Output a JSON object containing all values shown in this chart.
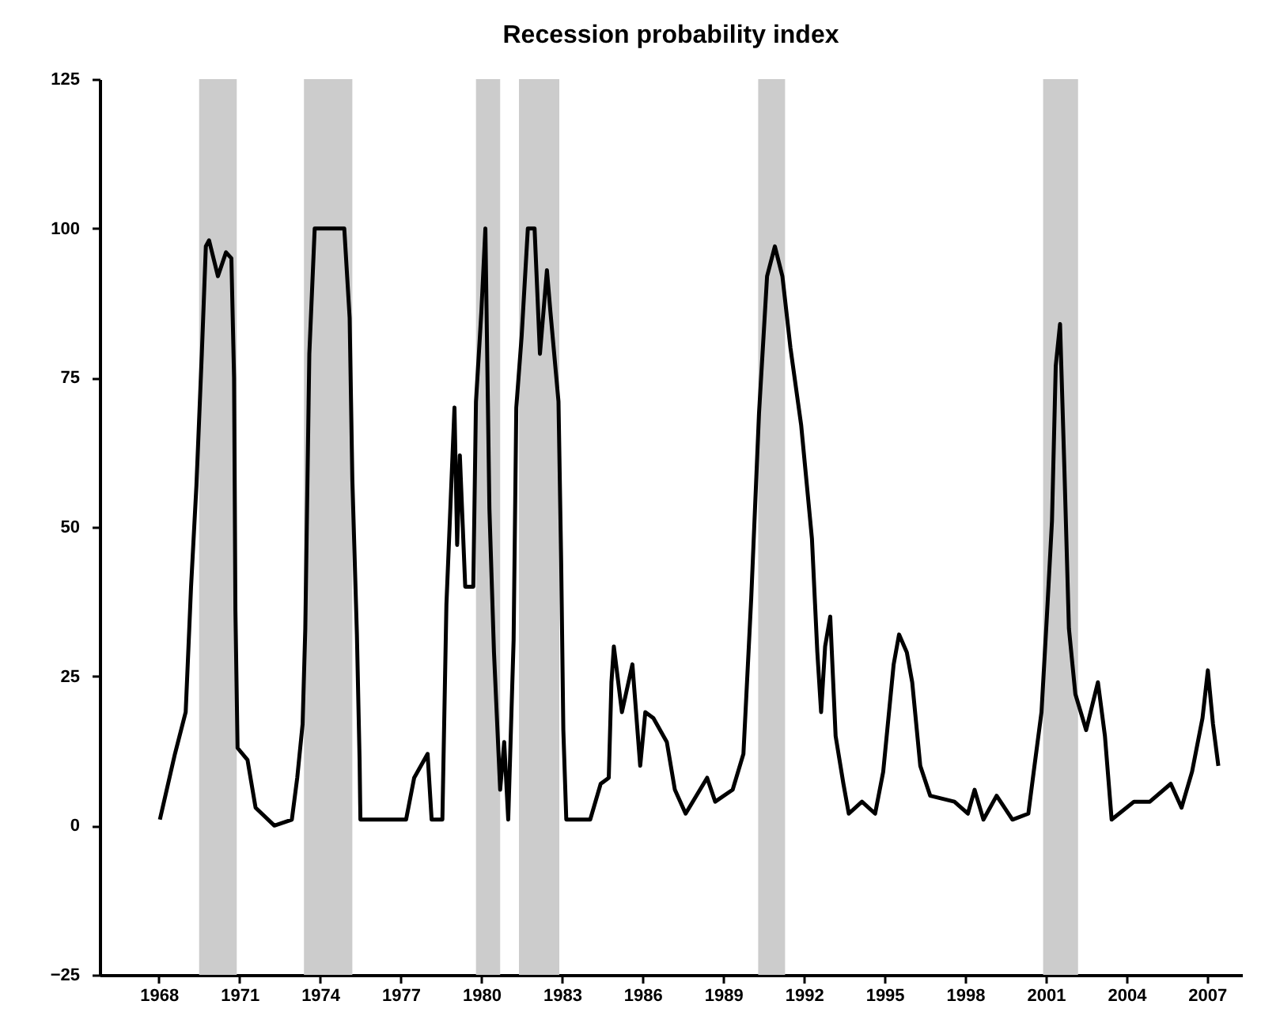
{
  "chart_data": {
    "type": "line",
    "title": "Recession probability index",
    "xlim": [
      1965.8,
      2008.3
    ],
    "xticks": [
      1968,
      1971,
      1974,
      1977,
      1980,
      1983,
      1986,
      1989,
      1992,
      1995,
      1998,
      2001,
      2004,
      2007
    ],
    "ylim": [
      -25,
      125
    ],
    "yticks": [
      -25,
      0,
      25,
      50,
      75,
      100,
      125
    ],
    "bands": [
      {
        "axis": "x",
        "from": 1969.5,
        "to": 1970.9,
        "color": "#cccccc"
      },
      {
        "axis": "x",
        "from": 1973.4,
        "to": 1975.2,
        "color": "#cccccc"
      },
      {
        "axis": "x",
        "from": 1979.8,
        "to": 1980.7,
        "color": "#cccccc"
      },
      {
        "axis": "x",
        "from": 1981.4,
        "to": 1982.9,
        "color": "#cccccc"
      },
      {
        "axis": "x",
        "from": 1990.3,
        "to": 1991.3,
        "color": "#cccccc"
      },
      {
        "axis": "x",
        "from": 2000.9,
        "to": 2002.2,
        "color": "#cccccc"
      }
    ],
    "series": [
      {
        "color": "#000000",
        "x": [
          1968.04,
          1968.6,
          1969.0,
          1969.2,
          1969.4,
          1969.6,
          1969.75,
          1969.87,
          1970.2,
          1970.5,
          1970.7,
          1970.8,
          1970.85,
          1970.93,
          1971.3,
          1971.6,
          1972.3,
          1972.95,
          1973.15,
          1973.35,
          1973.45,
          1973.6,
          1973.8,
          1974.0,
          1974.4,
          1974.9,
          1975.1,
          1975.2,
          1975.37,
          1975.47,
          1975.5,
          1976.2,
          1976.7,
          1977.2,
          1977.5,
          1978.0,
          1978.15,
          1978.55,
          1978.7,
          1979.0,
          1979.1,
          1979.2,
          1979.4,
          1979.7,
          1979.8,
          1980.0,
          1980.15,
          1980.3,
          1980.47,
          1980.7,
          1980.85,
          1981.0,
          1981.2,
          1981.3,
          1981.5,
          1981.73,
          1981.98,
          1982.18,
          1982.44,
          1982.57,
          1982.87,
          1982.97,
          1983.05,
          1983.16,
          1984.05,
          1984.44,
          1984.74,
          1984.84,
          1984.93,
          1985.23,
          1985.62,
          1985.91,
          1986.1,
          1986.4,
          1986.9,
          1987.2,
          1987.6,
          1988.4,
          1988.7,
          1989.35,
          1989.75,
          1990.04,
          1990.33,
          1990.63,
          1990.92,
          1991.2,
          1991.5,
          1991.9,
          1992.3,
          1992.5,
          1992.64,
          1992.79,
          1992.98,
          1993.18,
          1993.47,
          1993.67,
          1994.16,
          1994.65,
          1994.95,
          1995.34,
          1995.54,
          1995.83,
          1996.03,
          1996.33,
          1996.7,
          1997.6,
          1998.1,
          1998.35,
          1998.68,
          1999.17,
          1999.76,
          2000.35,
          2000.55,
          2000.84,
          2001.04,
          2001.23,
          2001.37,
          2001.53,
          2001.69,
          2001.86,
          2002.1,
          2002.5,
          2002.94,
          2003.2,
          2003.45,
          2004.28,
          2004.87,
          2005.65,
          2006.05,
          2006.44,
          2006.83,
          2007.03,
          2007.22,
          2007.42
        ],
        "values": [
          1,
          12,
          19,
          40,
          57,
          79,
          97,
          98,
          92,
          96,
          95,
          75,
          36,
          13,
          11,
          3,
          0,
          1,
          8,
          17,
          33,
          79,
          100,
          100,
          100,
          100,
          85,
          58,
          32,
          11,
          1,
          1,
          1,
          1,
          8,
          12,
          1,
          1,
          37,
          70,
          47,
          62,
          40,
          40,
          71,
          86,
          100,
          53,
          29,
          6,
          14,
          1,
          31,
          70,
          82,
          100,
          100,
          79,
          93,
          86,
          71,
          44,
          16,
          1,
          1,
          7,
          8,
          24,
          30,
          19,
          27,
          10,
          19,
          18,
          14,
          6,
          2,
          8,
          4,
          6,
          12,
          38,
          69,
          92,
          97,
          92,
          80,
          67,
          48,
          29,
          19,
          30,
          35,
          15,
          7,
          2,
          4,
          2,
          9,
          27,
          32,
          29,
          24,
          10,
          5,
          4,
          2,
          6,
          1,
          5,
          1,
          2,
          9,
          19,
          35,
          51,
          77,
          84,
          60,
          33,
          22,
          16,
          24,
          15,
          1,
          4,
          4,
          7,
          3,
          9,
          18,
          26,
          17,
          10
        ]
      }
    ]
  }
}
